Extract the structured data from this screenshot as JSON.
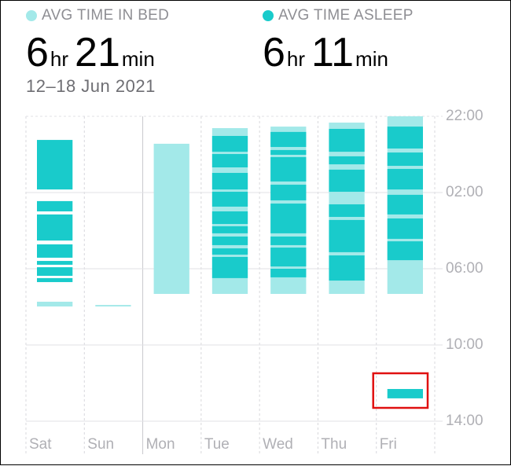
{
  "chart_data": {
    "type": "range-bar",
    "subtitle": "12–18 Jun 2021",
    "hours_unit": "hr",
    "minutes_unit": "min",
    "categories": [
      "Sat",
      "Sun",
      "Mon",
      "Tue",
      "Wed",
      "Thu",
      "Fri"
    ],
    "ylim": [
      0,
      16
    ],
    "yticks": [
      {
        "value": 0,
        "label": "22:00"
      },
      {
        "value": 4,
        "label": "02:00"
      },
      {
        "value": 8,
        "label": "06:00"
      },
      {
        "value": 12,
        "label": "10:00"
      },
      {
        "value": 16,
        "label": "14:00"
      }
    ],
    "grid": true,
    "series": [
      {
        "name": "AVG TIME IN BED",
        "color": "#a3e9e9",
        "avg_hours": 6,
        "avg_minutes": 21,
        "values": [
          [
            [
              9.73,
              9.98
            ]
          ],
          [
            [
              9.9,
              9.98
            ]
          ],
          [
            [
              1.44,
              9.32
            ]
          ],
          [
            [
              0.62,
              9.32
            ]
          ],
          [
            [
              0.54,
              9.32
            ]
          ],
          [
            [
              0.33,
              9.32
            ]
          ],
          [
            [
              0,
              9.32
            ]
          ]
        ]
      },
      {
        "name": "AVG TIME ASLEEP",
        "color": "#19cbcb",
        "avg_hours": 6,
        "avg_minutes": 11,
        "values": [
          [
            [
              1.24,
              3.84
            ],
            [
              4.45,
              4.99
            ],
            [
              5.15,
              6.52
            ],
            [
              6.72,
              7.42
            ],
            [
              7.59,
              7.79
            ],
            [
              7.92,
              8.37
            ],
            [
              8.49,
              8.7
            ]
          ],
          [],
          [],
          [
            [
              1.03,
              1.86
            ],
            [
              1.98,
              2.68
            ],
            [
              2.97,
              3.84
            ],
            [
              3.96,
              4.74
            ],
            [
              4.99,
              5.65
            ],
            [
              5.77,
              6.14
            ],
            [
              6.31,
              6.76
            ],
            [
              6.93,
              7.26
            ],
            [
              7.38,
              8.49
            ]
          ],
          [
            [
              0.82,
              1.61
            ],
            [
              1.77,
              2.02
            ],
            [
              2.14,
              3.42
            ],
            [
              3.59,
              4.41
            ],
            [
              4.58,
              6.14
            ],
            [
              6.31,
              6.76
            ],
            [
              6.89,
              7.88
            ],
            [
              8.0,
              8.45
            ]
          ],
          [
            [
              0.66,
              1.86
            ],
            [
              2.1,
              2.52
            ],
            [
              2.8,
              3.96
            ],
            [
              4.62,
              5.28
            ],
            [
              5.44,
              7.13
            ],
            [
              7.3,
              8.62
            ]
          ],
          [
            [
              0.54,
              1.69
            ],
            [
              1.9,
              2.6
            ],
            [
              2.76,
              3.84
            ],
            [
              4.12,
              5.15
            ],
            [
              5.36,
              6.43
            ],
            [
              6.56,
              7.55
            ],
            [
              14.31,
              14.8
            ]
          ]
        ]
      }
    ]
  }
}
